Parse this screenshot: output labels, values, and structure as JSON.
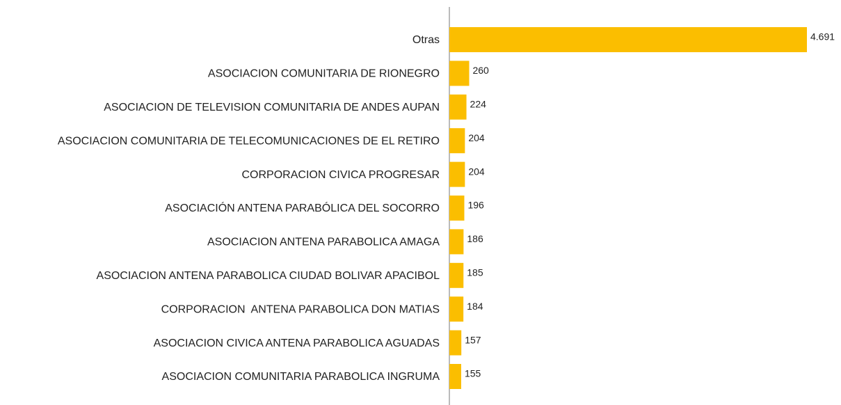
{
  "chart_data": {
    "type": "bar",
    "orientation": "horizontal",
    "color": "#fbbe00",
    "categories": [
      "Otras",
      "ASOCIACION COMUNITARIA DE RIONEGRO",
      "ASOCIACION DE TELEVISION COMUNITARIA DE ANDES AUPAN",
      "ASOCIACION COMUNITARIA DE TELECOMUNICACIONES DE EL RETIRO",
      "CORPORACION CIVICA PROGRESAR",
      "ASOCIACIÓN ANTENA PARABÓLICA DEL SOCORRO",
      "ASOCIACION ANTENA PARABOLICA AMAGA",
      "ASOCIACION ANTENA PARABOLICA CIUDAD BOLIVAR APACIBOL",
      "CORPORACION  ANTENA PARABOLICA DON MATIAS",
      "ASOCIACION CIVICA ANTENA PARABOLICA AGUADAS",
      "ASOCIACION COMUNITARIA PARABOLICA INGRUMA"
    ],
    "values": [
      4691,
      260,
      224,
      204,
      204,
      196,
      186,
      185,
      184,
      157,
      155
    ],
    "value_labels": [
      "4.691",
      "260",
      "224",
      "204",
      "204",
      "196",
      "186",
      "185",
      "184",
      "157",
      "155"
    ]
  }
}
